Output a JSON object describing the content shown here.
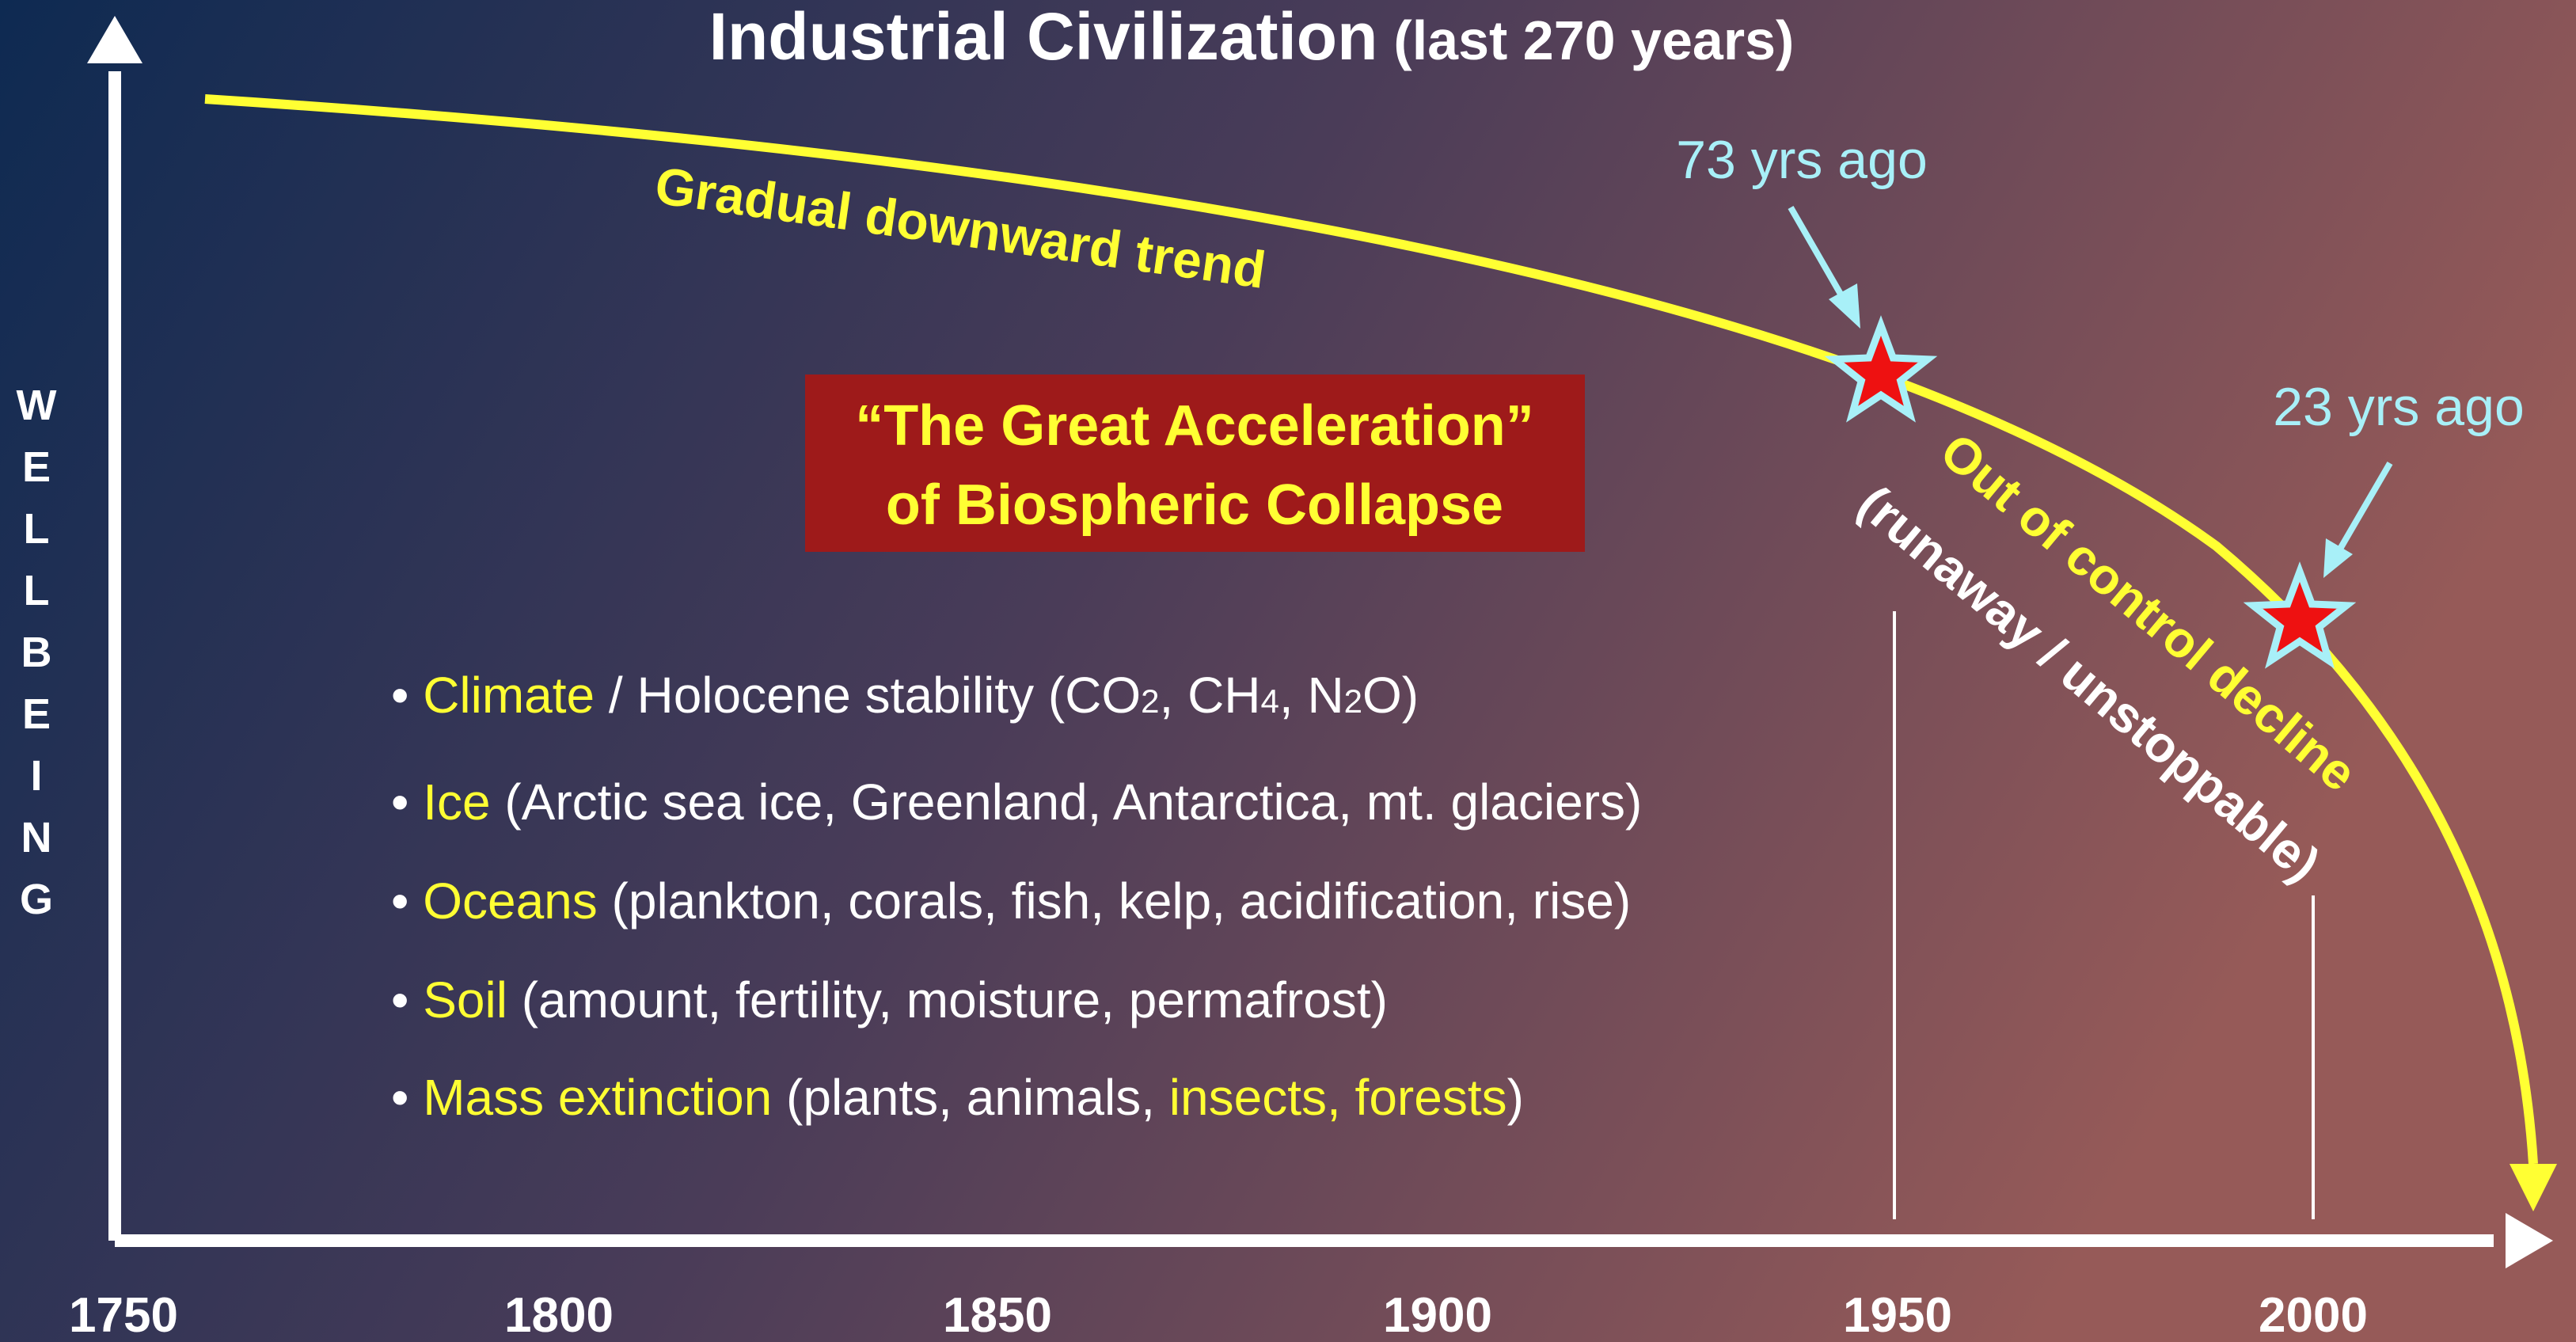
{
  "title": {
    "main": "Industrial Civilization",
    "sub": "(last 270 years)"
  },
  "y_axis_label": [
    "W",
    "E",
    "L",
    "L",
    "B",
    "E",
    "I",
    "N",
    "G"
  ],
  "x_axis_labels": [
    "1750",
    "1800",
    "1850",
    "1900",
    "1950",
    "2000"
  ],
  "annotations": {
    "trend": "Gradual downward trend",
    "decline": "Out of control decline",
    "runaway": "(runaway / unstoppable)",
    "ago_73": "73 yrs ago",
    "ago_23": "23 yrs ago"
  },
  "box": {
    "line1": "“The Great Acceleration”",
    "line2": "of Biospheric Collapse"
  },
  "bullets": [
    [
      {
        "text": "• "
      },
      {
        "text": "Climate",
        "color": "#ffff33"
      },
      {
        "text": " / Holocene stability (CO"
      },
      {
        "text": "2",
        "sub": true
      },
      {
        "text": ", CH"
      },
      {
        "text": "4",
        "sub": true
      },
      {
        "text": ", N"
      },
      {
        "text": "2",
        "sub": true
      },
      {
        "text": "O)"
      }
    ],
    [
      {
        "text": "• "
      },
      {
        "text": "Ice",
        "color": "#ffff33"
      },
      {
        "text": " (Arctic sea ice, Greenland, Antarctica, mt. glaciers)"
      }
    ],
    [
      {
        "text": "• "
      },
      {
        "text": "Oceans",
        "color": "#ffff33"
      },
      {
        "text": " (plankton, corals, fish, kelp, acidification, rise)"
      }
    ],
    [
      {
        "text": "• "
      },
      {
        "text": "Soil",
        "color": "#ffff33"
      },
      {
        "text": " (amount, fertility, moisture, permafrost)"
      }
    ],
    [
      {
        "text": "• "
      },
      {
        "text": "Mass extinction",
        "color": "#ffff33"
      },
      {
        "text": " (plants, animals, "
      },
      {
        "text": "insects, forests",
        "color": "#ffff33"
      },
      {
        "text": ")"
      }
    ]
  ]
}
